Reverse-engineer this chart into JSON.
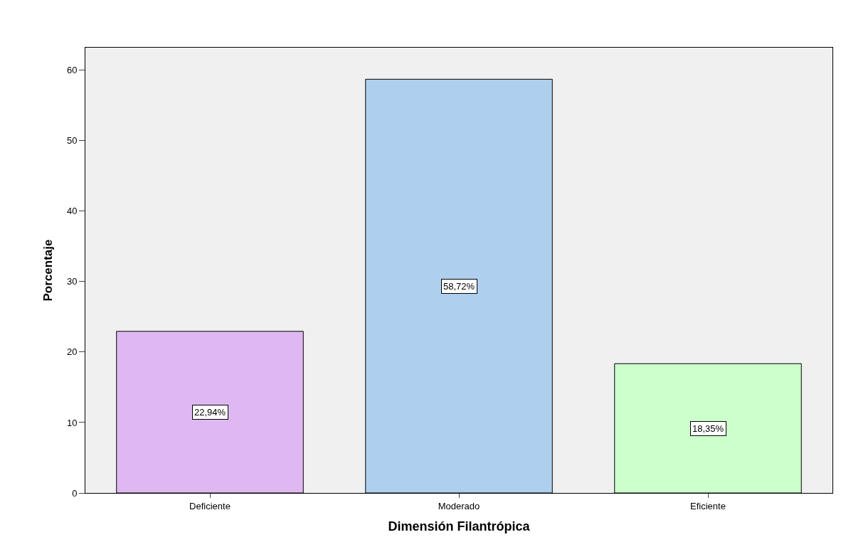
{
  "chart_data": {
    "type": "bar",
    "xlabel": "Dimensión Filantrópica",
    "ylabel": "Porcentaje",
    "categories": [
      "Deficiente",
      "Moderado",
      "Eficiente"
    ],
    "values": [
      22.94,
      58.72,
      18.35
    ],
    "value_labels": [
      "22,94%",
      "58,72%",
      "18,35%"
    ],
    "colors": [
      "#dfb8f2",
      "#aecfee",
      "#ccffcc"
    ],
    "ylim": [
      0,
      63.2
    ],
    "yticks": [
      0,
      10,
      20,
      30,
      40,
      50,
      60
    ],
    "grid": false
  }
}
